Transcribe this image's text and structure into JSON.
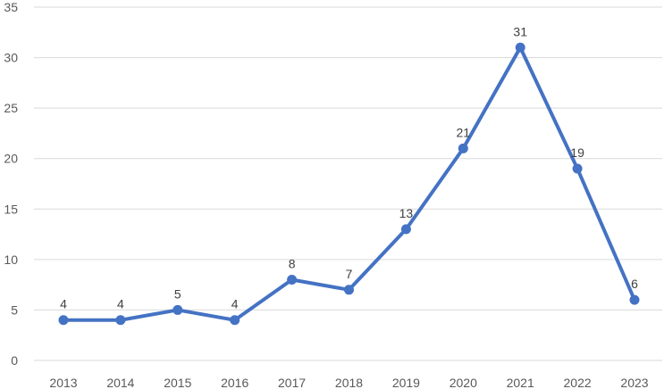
{
  "chart_data": {
    "type": "line",
    "title": "",
    "xlabel": "",
    "ylabel": "",
    "categories": [
      "2013",
      "2014",
      "2015",
      "2016",
      "2017",
      "2018",
      "2019",
      "2020",
      "2021",
      "2022",
      "2023"
    ],
    "series": [
      {
        "values": [
          4,
          4,
          5,
          4,
          8,
          7,
          13,
          21,
          31,
          19,
          6
        ],
        "color": "#4472c4"
      }
    ],
    "ylim": [
      0,
      35
    ],
    "yticks": [
      0,
      5,
      10,
      15,
      20,
      25,
      30,
      35
    ],
    "ytick_labels": [
      "0",
      "5",
      "10",
      "15",
      "20",
      "25",
      "30",
      "35"
    ],
    "data_labels": [
      "4",
      "4",
      "5",
      "4",
      "8",
      "7",
      "13",
      "21",
      "31",
      "19",
      "6"
    ],
    "grid": true,
    "legend": "none"
  }
}
